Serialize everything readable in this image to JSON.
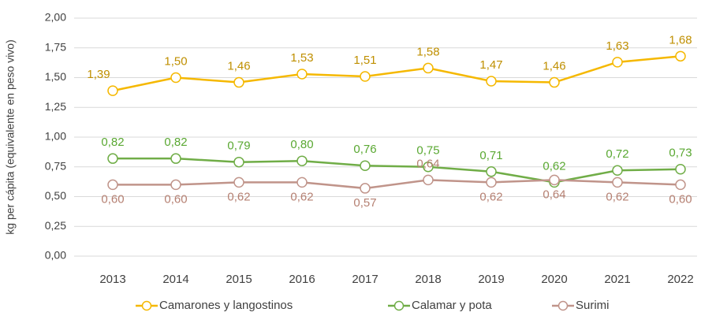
{
  "chart_data": {
    "type": "line",
    "y_label": "kg per cápita (equivalente en peso vivo)",
    "categories": [
      "2013",
      "2014",
      "2015",
      "2016",
      "2017",
      "2018",
      "2019",
      "2020",
      "2021",
      "2022"
    ],
    "ylim": [
      0,
      2
    ],
    "yticks": [
      {
        "value": 0,
        "label": "0,00"
      },
      {
        "value": 0.25,
        "label": "0,25"
      },
      {
        "value": 0.5,
        "label": "0,50"
      },
      {
        "value": 0.75,
        "label": "0,75"
      },
      {
        "value": 1,
        "label": "1,00"
      },
      {
        "value": 1.25,
        "label": "1,25"
      },
      {
        "value": 1.5,
        "label": "1,50"
      },
      {
        "value": 1.75,
        "label": "1,75"
      },
      {
        "value": 2,
        "label": "2,00"
      }
    ],
    "grid": true,
    "legend": "bottom",
    "series": [
      {
        "name": "Camarones y langostinos",
        "color": "#f5b800",
        "label_color": "#bf8f00",
        "values": [
          1.39,
          1.5,
          1.46,
          1.53,
          1.51,
          1.58,
          1.47,
          1.46,
          1.63,
          1.68
        ],
        "value_labels": [
          "1,39",
          "1,50",
          "1,46",
          "1,53",
          "1,51",
          "1,58",
          "1,47",
          "1,46",
          "1,63",
          "1,68"
        ]
      },
      {
        "name": "Calamar y pota",
        "color": "#70ad47",
        "label_color": "#5aa832",
        "values": [
          0.82,
          0.82,
          0.79,
          0.8,
          0.76,
          0.75,
          0.71,
          0.62,
          0.72,
          0.73
        ],
        "value_labels": [
          "0,82",
          "0,82",
          "0,79",
          "0,80",
          "0,76",
          "0,75",
          "0,71",
          "0,62",
          "0,72",
          "0,73"
        ]
      },
      {
        "name": "Surimi",
        "color": "#c0948a",
        "label_color": "#b58072",
        "values": [
          0.6,
          0.6,
          0.62,
          0.62,
          0.57,
          0.64,
          0.62,
          0.64,
          0.62,
          0.6
        ],
        "value_labels": [
          "0,60",
          "0,60",
          "0,62",
          "0,62",
          "0,57",
          "0,64",
          "0,62",
          "0,64",
          "0,62",
          "0,60"
        ]
      }
    ]
  }
}
